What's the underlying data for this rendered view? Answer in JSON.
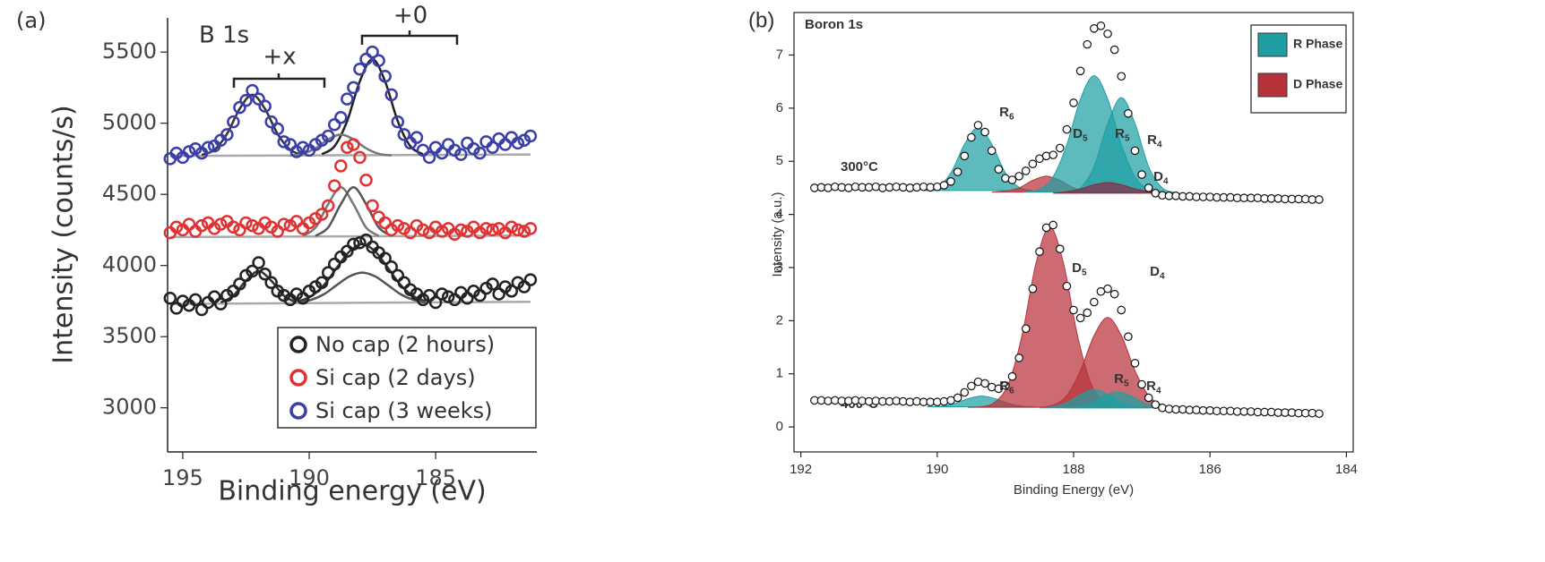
{
  "chart_data": [
    {
      "type": "scatter",
      "panel_label": "(a)",
      "title": "B 1s",
      "xlabel": "Binding energy (eV)",
      "ylabel": "Intensity (counts/s)",
      "annotations": [
        "+x",
        "+0"
      ],
      "xlim": [
        195.6,
        181
      ],
      "ylim": [
        2690,
        5740
      ],
      "xticks": [
        195,
        190,
        185
      ],
      "yticks": [
        3000,
        3500,
        4000,
        4500,
        5000,
        5500
      ],
      "legend_position": "lower right",
      "x": [
        195.5,
        195.25,
        195,
        194.75,
        194.5,
        194.25,
        194,
        193.75,
        193.5,
        193.25,
        193,
        192.75,
        192.5,
        192.25,
        192,
        191.75,
        191.5,
        191.25,
        191,
        190.75,
        190.5,
        190.25,
        190,
        189.75,
        189.5,
        189.25,
        189,
        188.75,
        188.5,
        188.25,
        188,
        187.75,
        187.5,
        187.25,
        187,
        186.75,
        186.5,
        186.25,
        186,
        185.75,
        185.5,
        185.25,
        185,
        184.75,
        184.5,
        184.25,
        184,
        183.75,
        183.5,
        183.25,
        183,
        182.75,
        182.5,
        182.25,
        182,
        181.75,
        181.5,
        181.25
      ],
      "series": [
        {
          "name": "No cap (2 hours)",
          "color": "#222222",
          "values": [
            3770,
            3700,
            3750,
            3720,
            3760,
            3690,
            3740,
            3780,
            3730,
            3790,
            3820,
            3870,
            3930,
            3960,
            4020,
            3940,
            3880,
            3820,
            3790,
            3760,
            3800,
            3770,
            3820,
            3850,
            3880,
            3950,
            4010,
            4060,
            4100,
            4150,
            4160,
            4180,
            4130,
            4090,
            4050,
            3990,
            3930,
            3880,
            3830,
            3800,
            3760,
            3790,
            3740,
            3800,
            3780,
            3760,
            3810,
            3770,
            3820,
            3790,
            3840,
            3870,
            3800,
            3850,
            3820,
            3880,
            3850,
            3900
          ]
        },
        {
          "name": "Si cap (2 days)",
          "color": "#e03232",
          "values": [
            4230,
            4270,
            4250,
            4290,
            4240,
            4280,
            4300,
            4260,
            4290,
            4310,
            4270,
            4250,
            4300,
            4280,
            4260,
            4300,
            4270,
            4240,
            4290,
            4280,
            4310,
            4260,
            4300,
            4330,
            4360,
            4420,
            4560,
            4700,
            4830,
            4850,
            4760,
            4600,
            4420,
            4340,
            4300,
            4250,
            4280,
            4260,
            4230,
            4280,
            4250,
            4230,
            4270,
            4240,
            4260,
            4220,
            4250,
            4240,
            4270,
            4230,
            4260,
            4250,
            4260,
            4230,
            4270,
            4250,
            4240,
            4260
          ]
        },
        {
          "name": "Si cap (3 weeks)",
          "color": "#3a3fa8",
          "values": [
            4750,
            4790,
            4760,
            4800,
            4820,
            4790,
            4830,
            4840,
            4880,
            4920,
            5010,
            5110,
            5160,
            5230,
            5170,
            5120,
            5010,
            4960,
            4870,
            4850,
            4800,
            4830,
            4810,
            4850,
            4880,
            4910,
            4990,
            5040,
            5170,
            5250,
            5380,
            5450,
            5500,
            5440,
            5330,
            5200,
            5010,
            4920,
            4860,
            4900,
            4810,
            4760,
            4830,
            4790,
            4850,
            4810,
            4780,
            4860,
            4820,
            4790,
            4870,
            4830,
            4890,
            4850,
            4900,
            4860,
            4880,
            4910
          ]
        }
      ],
      "fits": [
        {
          "color": "#aaaaaa",
          "x": [
            195.5,
            181.25
          ],
          "values": [
            3730,
            3745
          ]
        },
        {
          "color": "#333333",
          "x": [
            193.5,
            193,
            192.5,
            192,
            191.5,
            191,
            190.5
          ],
          "values": [
            3740,
            3788,
            3893,
            3960,
            3893,
            3788,
            3740
          ]
        },
        {
          "color": "#333333",
          "x": [
            190.4,
            189.9,
            189.4,
            188.9,
            188.4,
            187.9,
            187.4,
            186.9,
            186.4,
            185.9,
            185.4
          ],
          "values": [
            3748,
            3787,
            3866,
            3986,
            4100,
            4150,
            4100,
            3986,
            3866,
            3787,
            3748
          ]
        },
        {
          "color": "#555555",
          "x": [
            190.4,
            189.9,
            189.4,
            188.9,
            188.4,
            187.9,
            187.4,
            186.9,
            186.4,
            185.9,
            185.4
          ],
          "values": [
            3740,
            3760,
            3800,
            3864,
            3924,
            3950,
            3924,
            3864,
            3800,
            3760,
            3740
          ]
        },
        {
          "color": "#aaaaaa",
          "x": [
            195.5,
            181.25
          ],
          "values": [
            4200,
            4210
          ]
        },
        {
          "color": "#777777",
          "x": [
            190.25,
            189.75,
            189.25,
            188.75,
            188.25,
            187.75,
            187.25
          ],
          "values": [
            4208,
            4267,
            4431,
            4550,
            4431,
            4267,
            4208
          ]
        },
        {
          "color": "#555555",
          "x": [
            189.75,
            189.25,
            188.75,
            188.25,
            187.75,
            187.25,
            186.75
          ],
          "values": [
            4208,
            4267,
            4431,
            4550,
            4431,
            4267,
            4208
          ]
        },
        {
          "color": "#aaaaaa",
          "x": [
            195.5,
            181.25
          ],
          "values": [
            4770,
            4780
          ]
        },
        {
          "color": "#333333",
          "x": [
            194.25,
            193.75,
            193.25,
            192.75,
            192.25,
            191.75,
            191.25,
            190.75,
            190.25
          ],
          "values": [
            4777,
            4813,
            4925,
            5101,
            5200,
            5101,
            4925,
            4813,
            4777
          ]
        },
        {
          "color": "#222222",
          "x": [
            189.5,
            189,
            188.5,
            188,
            187.5,
            187,
            186.5,
            186,
            185.5
          ],
          "values": [
            4782,
            4838,
            5015,
            5294,
            5450,
            5294,
            5015,
            4838,
            4782
          ]
        },
        {
          "color": "#777777",
          "x": [
            190.75,
            190.25,
            189.75,
            189.25,
            188.75,
            188.25,
            187.75,
            187.25,
            186.75
          ],
          "values": [
            4773,
            4785,
            4824,
            4886,
            4920,
            4886,
            4824,
            4785,
            4773
          ]
        }
      ]
    },
    {
      "type": "scatter",
      "panel_label": "(b)",
      "title": "Boron 1s",
      "xlabel": "Binding Energy (eV)",
      "ylabel": "Intensity (a.u.)",
      "xlim": [
        192.1,
        183.9
      ],
      "ylim": [
        -0.47,
        7.8
      ],
      "xticks": [
        192,
        190,
        188,
        186,
        184
      ],
      "yticks": [
        0,
        1,
        2,
        3,
        4,
        5,
        6,
        7
      ],
      "legend_position": "upper right",
      "phases": [
        {
          "name": "R Phase",
          "color": "#1f9fa3"
        },
        {
          "name": "D Phase",
          "color": "#b8323a"
        }
      ],
      "x": [
        191.8,
        191.7,
        191.6,
        191.5,
        191.4,
        191.3,
        191.2,
        191.1,
        191,
        190.9,
        190.8,
        190.7,
        190.6,
        190.5,
        190.4,
        190.3,
        190.2,
        190.1,
        190,
        189.9,
        189.8,
        189.7,
        189.6,
        189.5,
        189.4,
        189.3,
        189.2,
        189.1,
        189,
        188.9,
        188.8,
        188.7,
        188.6,
        188.5,
        188.4,
        188.3,
        188.2,
        188.1,
        188,
        187.9,
        187.8,
        187.7,
        187.6,
        187.5,
        187.4,
        187.3,
        187.2,
        187.1,
        187,
        186.9,
        186.8,
        186.7,
        186.6,
        186.5,
        186.4,
        186.3,
        186.2,
        186.1,
        186,
        185.9,
        185.8,
        185.7,
        185.6,
        185.5,
        185.4,
        185.3,
        185.2,
        185.1,
        185,
        184.9,
        184.8,
        184.7,
        184.6,
        184.5,
        184.4
      ],
      "series": [
        {
          "name": "300°C",
          "color": "#111111",
          "values": [
            4.5,
            4.51,
            4.5,
            4.52,
            4.51,
            4.5,
            4.52,
            4.51,
            4.51,
            4.52,
            4.5,
            4.51,
            4.52,
            4.51,
            4.5,
            4.51,
            4.52,
            4.51,
            4.52,
            4.55,
            4.62,
            4.8,
            5.1,
            5.45,
            5.68,
            5.55,
            5.2,
            4.85,
            4.68,
            4.65,
            4.72,
            4.82,
            4.95,
            5.05,
            5.1,
            5.12,
            5.25,
            5.6,
            6.1,
            6.7,
            7.2,
            7.5,
            7.55,
            7.4,
            7.1,
            6.6,
            5.9,
            5.2,
            4.75,
            4.5,
            4.4,
            4.36,
            4.35,
            4.35,
            4.34,
            4.34,
            4.33,
            4.33,
            4.33,
            4.32,
            4.32,
            4.32,
            4.31,
            4.31,
            4.31,
            4.31,
            4.3,
            4.3,
            4.3,
            4.29,
            4.29,
            4.29,
            4.29,
            4.28,
            4.28
          ]
        },
        {
          "name": "400°C",
          "color": "#111111",
          "values": [
            0.5,
            0.5,
            0.49,
            0.5,
            0.49,
            0.49,
            0.5,
            0.49,
            0.48,
            0.49,
            0.48,
            0.48,
            0.49,
            0.48,
            0.47,
            0.48,
            0.47,
            0.47,
            0.47,
            0.48,
            0.5,
            0.55,
            0.65,
            0.77,
            0.85,
            0.82,
            0.75,
            0.72,
            0.78,
            0.95,
            1.3,
            1.85,
            2.6,
            3.3,
            3.75,
            3.8,
            3.35,
            2.65,
            2.2,
            2.05,
            2.15,
            2.35,
            2.55,
            2.6,
            2.5,
            2.2,
            1.7,
            1.2,
            0.8,
            0.55,
            0.42,
            0.36,
            0.34,
            0.33,
            0.33,
            0.32,
            0.32,
            0.31,
            0.31,
            0.3,
            0.3,
            0.3,
            0.29,
            0.29,
            0.29,
            0.28,
            0.28,
            0.28,
            0.27,
            0.27,
            0.27,
            0.26,
            0.26,
            0.26,
            0.25
          ]
        }
      ],
      "components": [
        {
          "label": "R",
          "sub": "6",
          "color": "#1f9fa3",
          "x": [
            190.2,
            190,
            189.8,
            189.6,
            189.4,
            189.2,
            189,
            188.8,
            188.6
          ],
          "values": [
            4.45,
            4.51,
            4.78,
            5.32,
            5.64,
            5.32,
            4.78,
            4.51,
            4.45
          ]
        },
        {
          "label": "D",
          "sub": "5",
          "color": "#b8323a",
          "x": [
            189.2,
            189,
            188.8,
            188.6,
            188.4,
            188.2,
            188,
            187.8,
            187.6
          ],
          "values": [
            4.42,
            4.44,
            4.5,
            4.64,
            4.72,
            4.64,
            4.5,
            4.44,
            4.42
          ]
        },
        {
          "label": "R",
          "sub": "5",
          "color": "#1f9fa3",
          "x": [
            188.7,
            188.5,
            188.3,
            188.1,
            187.9,
            187.7,
            187.5,
            187.3,
            187.1,
            186.9,
            186.7
          ],
          "values": [
            4.42,
            4.47,
            4.71,
            5.31,
            6.17,
            6.61,
            6.17,
            5.31,
            4.71,
            4.47,
            4.42
          ]
        },
        {
          "label": "R",
          "sub": "4",
          "color": "#1f9fa3",
          "x": [
            188.1,
            187.9,
            187.7,
            187.5,
            187.3,
            187.1,
            186.9,
            186.7,
            186.5
          ],
          "values": [
            4.41,
            4.5,
            4.9,
            5.71,
            6.2,
            5.71,
            4.9,
            4.5,
            4.41
          ]
        },
        {
          "label": "D",
          "sub": "4",
          "color": "#8a2a45",
          "x": [
            188.3,
            188.1,
            187.9,
            187.7,
            187.5,
            187.3,
            187.1,
            186.9,
            186.7
          ],
          "values": [
            4.4,
            4.43,
            4.48,
            4.56,
            4.6,
            4.56,
            4.48,
            4.43,
            4.4
          ]
        },
        {
          "label": "R",
          "sub": "6",
          "color": "#1f9fa3",
          "x": [
            190.15,
            189.95,
            189.75,
            189.55,
            189.35,
            189.15,
            188.95,
            188.75,
            188.55
          ],
          "values": [
            0.38,
            0.39,
            0.44,
            0.53,
            0.58,
            0.53,
            0.44,
            0.39,
            0.38
          ]
        },
        {
          "label": "D",
          "sub": "5",
          "color": "#b8323a",
          "x": [
            189.55,
            189.35,
            189.15,
            188.95,
            188.75,
            188.55,
            188.35,
            188.15,
            187.95,
            187.75,
            187.55,
            187.35,
            187.15
          ],
          "values": [
            0.37,
            0.38,
            0.47,
            0.83,
            1.76,
            3.09,
            3.77,
            3.09,
            1.76,
            0.83,
            0.47,
            0.38,
            0.37
          ]
        },
        {
          "label": "D",
          "sub": "4",
          "color": "#b8323a",
          "x": [
            188.5,
            188.3,
            188.1,
            187.9,
            187.7,
            187.5,
            187.3,
            187.1,
            186.9,
            186.7,
            186.5
          ],
          "values": [
            0.37,
            0.41,
            0.59,
            1.06,
            1.72,
            2.06,
            1.72,
            1.06,
            0.59,
            0.41,
            0.37
          ]
        },
        {
          "label": "R",
          "sub": "5",
          "color": "#1f9fa3",
          "x": [
            188.5,
            188.3,
            188.1,
            187.9,
            187.7,
            187.5,
            187.3,
            187.1,
            186.9
          ],
          "values": [
            0.36,
            0.38,
            0.46,
            0.61,
            0.71,
            0.61,
            0.46,
            0.38,
            0.36
          ]
        },
        {
          "label": "R",
          "sub": "4",
          "color": "#1f9fa3",
          "x": [
            188.15,
            187.95,
            187.75,
            187.55,
            187.35,
            187.15,
            186.95,
            186.75,
            186.55
          ],
          "values": [
            0.36,
            0.38,
            0.44,
            0.58,
            0.66,
            0.58,
            0.44,
            0.38,
            0.36
          ]
        }
      ]
    }
  ]
}
